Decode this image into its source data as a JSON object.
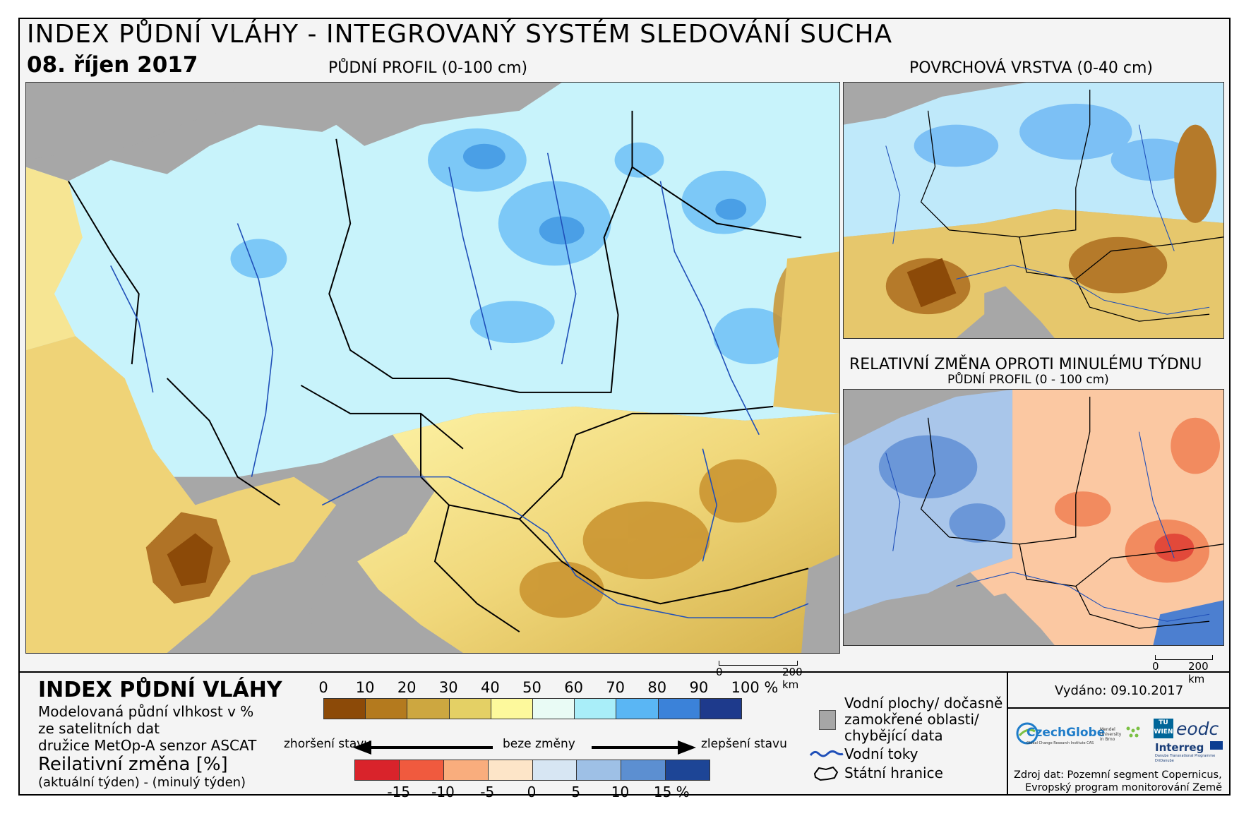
{
  "header": {
    "title": "INDEX PŮDNÍ VLÁHY - INTEGROVANÝ SYSTÉM SLEDOVÁNÍ SUCHA",
    "date": "08. říjen 2017"
  },
  "maps": {
    "main_caption": "PŮDNÍ PROFIL (0-100 cm)",
    "surface_caption": "POVRCHOVÁ VRSTVA (0-40 cm)",
    "change_caption": "RELATIVNÍ ZMĚNA OPROTI MINULÉMU TÝDNU",
    "change_subcaption": "PŮDNÍ PROFIL (0 - 100 cm)"
  },
  "scalebars": {
    "main": {
      "start": "0",
      "end": "200 km"
    },
    "side": {
      "start": "0",
      "end": "200 km"
    }
  },
  "legend": {
    "title": "INDEX PŮDNÍ VLÁHY",
    "desc_line1": "Modelovaná půdní vlhkost v %",
    "desc_line2": "ze satelitních dat",
    "desc_line3": "družice MetOp-A senzor ASCAT",
    "change_title": "Reilativní změna [%]",
    "change_desc": "(aktuální týden) - (minulý týden)",
    "index_ticks": [
      "0",
      "10",
      "20",
      "30",
      "40",
      "50",
      "60",
      "70",
      "80",
      "90",
      "100 %"
    ],
    "index_colors": [
      "#8c4a08",
      "#b47a1e",
      "#cda740",
      "#e4d065",
      "#fdf99c",
      "#e9fbf5",
      "#a9eef9",
      "#5ab6f4",
      "#3b82d9",
      "#1e3a8c"
    ],
    "change_ticks": [
      "-15",
      "-10",
      "-5",
      "0",
      "5",
      "10",
      "15 %"
    ],
    "change_colors": [
      "#d9232b",
      "#f05a3e",
      "#f9ad7d",
      "#fde5c8",
      "#d7e6f3",
      "#9ec0e6",
      "#5c8fd1",
      "#1d4596"
    ],
    "arrow_left": "zhoršení stavu",
    "arrow_mid": "beze změny",
    "arrow_right": "zlepšení stavu",
    "water_label_line1": "Vodní plochy/ dočasně",
    "water_label_line2": "zamokřené oblasti/",
    "water_label_line3": "chybějící data",
    "rivers_label": "Vodní toky",
    "borders_label": "Státní hranice",
    "missing_color": "#a6a6a6"
  },
  "sidebar": {
    "issued": "Vydáno: 09.10.2017",
    "czechglobe": "CzechGlobe",
    "czechglobe_sub": "Global Change Research Institute CAS",
    "mendel": "Mendel University in Brno",
    "tu": "TU WIEN",
    "eodc": "eodc",
    "interreg": "Interreg",
    "interreg_sub": "Danube Transnational Programme",
    "dridanube": "DriDanube",
    "source_line1": "Zdroj dat: Pozemní segment Copernicus,",
    "source_line2": "Evropský program monitorování Země"
  }
}
